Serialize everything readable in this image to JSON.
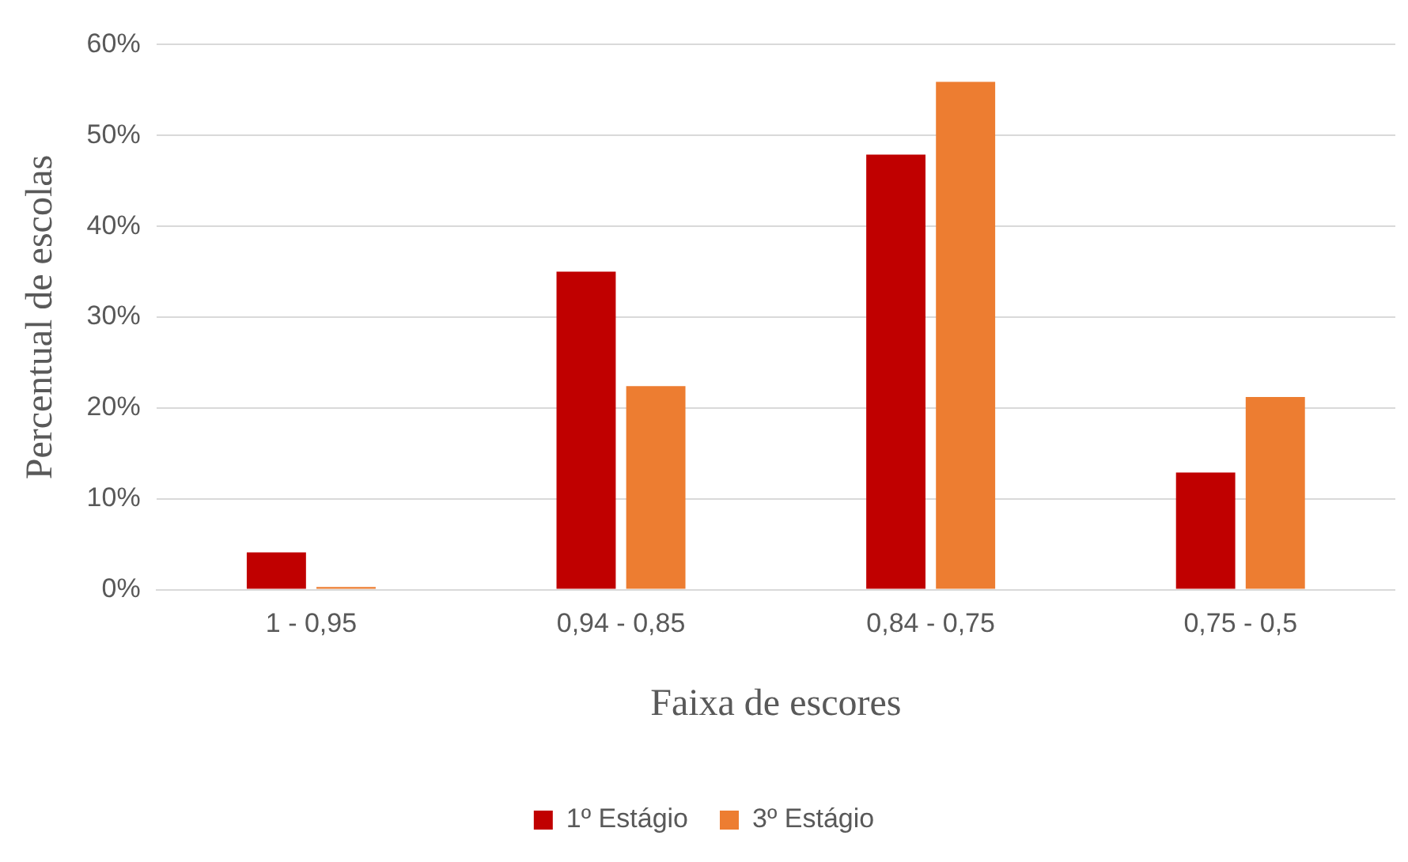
{
  "chart_data": {
    "type": "bar",
    "xlabel": "Faixa de escores",
    "ylabel": "Percentual de escolas",
    "categories": [
      "1 - 0,95",
      "0,94 - 0,85",
      "0,84 - 0,75",
      "0,75 - 0,5"
    ],
    "series": [
      {
        "name": "1º Estágio",
        "color": "#c00000",
        "values": [
          4.1,
          35,
          47.9,
          12.9
        ]
      },
      {
        "name": "3º Estágio",
        "color": "#ed7d31",
        "values": [
          0.3,
          22.4,
          55.9,
          21.2
        ]
      }
    ],
    "ylim": [
      0,
      60
    ],
    "yticks": [
      {
        "value": 0,
        "label": "0%"
      },
      {
        "value": 10,
        "label": "10%"
      },
      {
        "value": 20,
        "label": "20%"
      },
      {
        "value": 30,
        "label": "30%"
      },
      {
        "value": 40,
        "label": "40%"
      },
      {
        "value": 50,
        "label": "50%"
      },
      {
        "value": 60,
        "label": "60%"
      }
    ],
    "grid": "y",
    "legend": "bottom"
  }
}
